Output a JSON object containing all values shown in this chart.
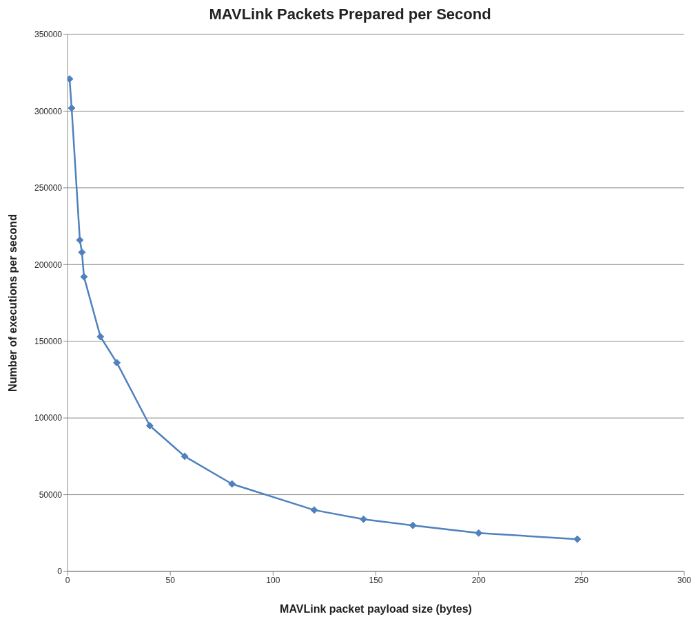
{
  "chart_data": {
    "type": "line",
    "title": "MAVLink Packets Prepared per Second",
    "xlabel": "MAVLink packet payload size (bytes)",
    "ylabel": "Number of executions per second",
    "x": [
      1,
      2,
      6,
      7,
      8,
      16,
      24,
      40,
      57,
      80,
      120,
      144,
      168,
      200,
      248
    ],
    "series": [
      {
        "color": "#4f81bd",
        "values": [
          321000,
          302000,
          216000,
          208000,
          192000,
          153000,
          136000,
          95000,
          75000,
          57000,
          40000,
          34000,
          30000,
          25000,
          21000
        ]
      }
    ],
    "xlim": [
      0,
      300
    ],
    "xticks": [
      0,
      50,
      100,
      150,
      200,
      250,
      300
    ],
    "ylim": [
      0,
      350000
    ],
    "yticks": [
      0,
      50000,
      100000,
      150000,
      200000,
      250000,
      300000,
      350000
    ],
    "grid": "y",
    "legend": false,
    "marker": "diamond",
    "line_style": "solid"
  }
}
